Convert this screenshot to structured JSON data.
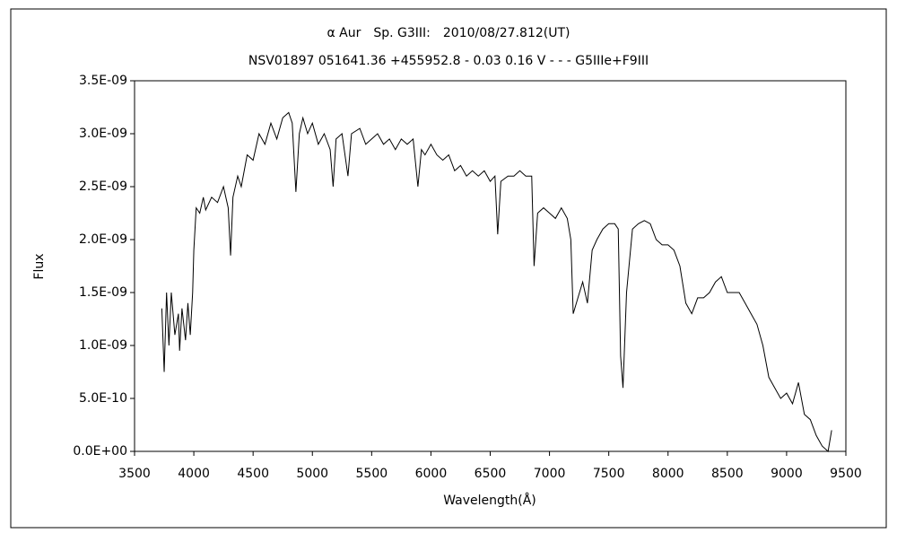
{
  "chart_data": {
    "type": "line",
    "title": "α Aur　Sp. G3III:　2010/08/27.812(UT)",
    "subtitle": "NSV01897 051641.36 +455952.8 - 0.03 0.16 V - - - G5IIIe+F9III",
    "x_label": "Wavelength(Å)",
    "y_label": "Flux",
    "color": "#000000",
    "x": [
      3730,
      3750,
      3770,
      3790,
      3810,
      3840,
      3870,
      3880,
      3900,
      3930,
      3950,
      3970,
      3990,
      4000,
      4020,
      4050,
      4080,
      4100,
      4150,
      4200,
      4250,
      4290,
      4310,
      4330,
      4370,
      4400,
      4450,
      4500,
      4550,
      4600,
      4650,
      4700,
      4750,
      4800,
      4830,
      4861,
      4890,
      4920,
      4960,
      5000,
      5050,
      5100,
      5150,
      5175,
      5200,
      5250,
      5300,
      5330,
      5400,
      5450,
      5500,
      5550,
      5600,
      5650,
      5700,
      5750,
      5800,
      5850,
      5890,
      5920,
      5950,
      6000,
      6050,
      6100,
      6150,
      6200,
      6250,
      6300,
      6350,
      6400,
      6450,
      6500,
      6540,
      6563,
      6590,
      6650,
      6700,
      6750,
      6800,
      6850,
      6870,
      6900,
      6950,
      7000,
      7050,
      7100,
      7150,
      7180,
      7200,
      7240,
      7280,
      7320,
      7360,
      7400,
      7450,
      7500,
      7550,
      7580,
      7600,
      7620,
      7650,
      7700,
      7750,
      7800,
      7850,
      7900,
      7950,
      8000,
      8050,
      8100,
      8150,
      8200,
      8250,
      8300,
      8350,
      8400,
      8450,
      8500,
      8550,
      8600,
      8650,
      8700,
      8750,
      8800,
      8850,
      8900,
      8950,
      9000,
      9050,
      9100,
      9150,
      9200,
      9250,
      9300,
      9350,
      9380
    ],
    "values": [
      1.35e-09,
      7.5e-10,
      1.5e-09,
      1e-09,
      1.5e-09,
      1.1e-09,
      1.3e-09,
      9.5e-10,
      1.35e-09,
      1.05e-09,
      1.4e-09,
      1.1e-09,
      1.5e-09,
      1.9e-09,
      2.3e-09,
      2.25e-09,
      2.4e-09,
      2.28e-09,
      2.4e-09,
      2.35e-09,
      2.5e-09,
      2.3e-09,
      1.85e-09,
      2.4e-09,
      2.6e-09,
      2.5e-09,
      2.8e-09,
      2.75e-09,
      3e-09,
      2.9e-09,
      3.1e-09,
      2.95e-09,
      3.15e-09,
      3.2e-09,
      3.1e-09,
      2.45e-09,
      3e-09,
      3.15e-09,
      3e-09,
      3.1e-09,
      2.9e-09,
      3e-09,
      2.85e-09,
      2.5e-09,
      2.95e-09,
      3e-09,
      2.6e-09,
      3e-09,
      3.05e-09,
      2.9e-09,
      2.95e-09,
      3e-09,
      2.9e-09,
      2.95e-09,
      2.85e-09,
      2.95e-09,
      2.9e-09,
      2.95e-09,
      2.5e-09,
      2.85e-09,
      2.8e-09,
      2.9e-09,
      2.8e-09,
      2.75e-09,
      2.8e-09,
      2.65e-09,
      2.7e-09,
      2.6e-09,
      2.65e-09,
      2.6e-09,
      2.65e-09,
      2.55e-09,
      2.6e-09,
      2.05e-09,
      2.55e-09,
      2.6e-09,
      2.6e-09,
      2.65e-09,
      2.6e-09,
      2.6e-09,
      1.75e-09,
      2.25e-09,
      2.3e-09,
      2.25e-09,
      2.2e-09,
      2.3e-09,
      2.2e-09,
      2e-09,
      1.3e-09,
      1.45e-09,
      1.6e-09,
      1.4e-09,
      1.9e-09,
      2e-09,
      2.1e-09,
      2.15e-09,
      2.15e-09,
      2.1e-09,
      9e-10,
      6e-10,
      1.5e-09,
      2.1e-09,
      2.15e-09,
      2.18e-09,
      2.15e-09,
      2e-09,
      1.95e-09,
      1.95e-09,
      1.9e-09,
      1.75e-09,
      1.4e-09,
      1.3e-09,
      1.45e-09,
      1.45e-09,
      1.5e-09,
      1.6e-09,
      1.65e-09,
      1.5e-09,
      1.5e-09,
      1.5e-09,
      1.4e-09,
      1.3e-09,
      1.2e-09,
      1e-09,
      7e-10,
      6e-10,
      5e-10,
      5.5e-10,
      4.5e-10,
      6.5e-10,
      3.5e-10,
      3e-10,
      1.5e-10,
      5e-11,
      0.0,
      2e-10
    ],
    "xlim": [
      3500,
      9500
    ],
    "xticks": [
      3500,
      4000,
      4500,
      5000,
      5500,
      6000,
      6500,
      7000,
      7500,
      8000,
      8500,
      9000,
      9500
    ],
    "ylim": [
      0,
      3.5e-09
    ],
    "yticks": [
      {
        "value": 0,
        "label": "0.0E+00"
      },
      {
        "value": 5e-10,
        "label": "5.0E-10"
      },
      {
        "value": 1e-09,
        "label": "1.0E-09"
      },
      {
        "value": 1.5e-09,
        "label": "1.5E-09"
      },
      {
        "value": 2e-09,
        "label": "2.0E-09"
      },
      {
        "value": 2.5e-09,
        "label": "2.5E-09"
      },
      {
        "value": 3e-09,
        "label": "3.0E-09"
      },
      {
        "value": 3.5e-09,
        "label": "3.5E-09"
      }
    ]
  }
}
